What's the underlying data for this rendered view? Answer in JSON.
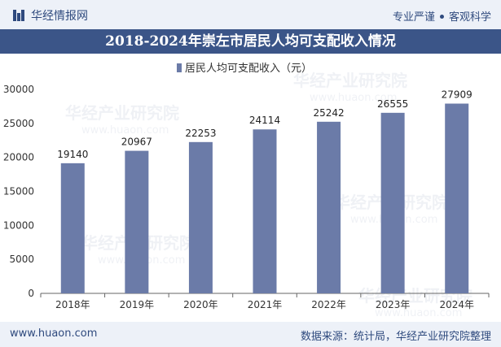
{
  "header": {
    "brand_name": "华经情报网",
    "tagline_left": "专业严谨",
    "tagline_right": "客观科学"
  },
  "title": "2018-2024年崇左市居民人均可支配收入情况",
  "footer": {
    "website": "www.huaon.com",
    "source": "数据来源：统计局，华经产业研究院整理"
  },
  "watermark": {
    "cn": "华经产业研究院",
    "url": "www.huaon.com"
  },
  "colors": {
    "bar": "#6b7ba8",
    "header_band": "#3b5588",
    "top_band": "#edf1f8"
  },
  "chart_data": {
    "type": "bar",
    "categories": [
      "2018年",
      "2019年",
      "2020年",
      "2021年",
      "2022年",
      "2023年",
      "2024年"
    ],
    "series": [
      {
        "name": "居民人均可支配收入（元）",
        "values": [
          19140,
          20967,
          22253,
          24114,
          25242,
          26555,
          27909
        ]
      }
    ],
    "ylim": [
      0,
      30000
    ],
    "yticks": [
      0,
      5000,
      10000,
      15000,
      20000,
      25000,
      30000
    ],
    "legend": "top-center",
    "grid": false
  }
}
